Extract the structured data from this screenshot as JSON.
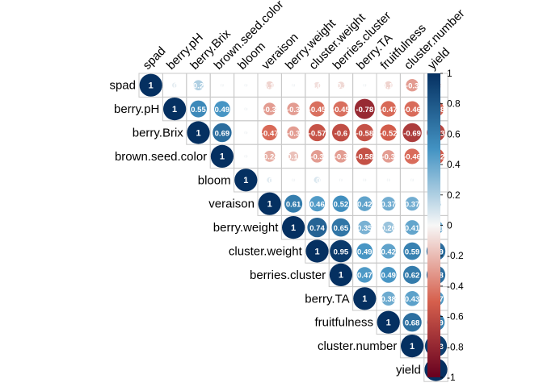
{
  "chart_data": {
    "type": "heatmap",
    "subtype": "correlation-circles-upper-triangle",
    "variables": [
      "spad",
      "berry.pH",
      "berry.Brix",
      "brown.seed.color",
      "bloom",
      "veraison",
      "berry.weight",
      "cluster.weight",
      "berries.cluster",
      "berry.TA",
      "fruitfulness",
      "cluster.number",
      "yield"
    ],
    "matrix": [
      [
        1,
        0.05,
        0.2,
        0.02,
        0.02,
        -0.12,
        0.02,
        -0.08,
        -0.1,
        0.02,
        -0.12,
        -0.3,
        -0.2
      ],
      [
        null,
        1,
        0.55,
        0.49,
        0.02,
        -0.3,
        -0.3,
        -0.45,
        -0.45,
        -0.78,
        -0.47,
        -0.46,
        -0.48
      ],
      [
        null,
        null,
        1,
        0.69,
        0.02,
        -0.47,
        -0.3,
        -0.57,
        -0.6,
        -0.58,
        -0.52,
        -0.69,
        -0.63
      ],
      [
        null,
        null,
        null,
        1,
        0.02,
        -0.24,
        -0.18,
        -0.3,
        -0.3,
        -0.58,
        -0.3,
        -0.46,
        -0.52
      ],
      [
        null,
        null,
        null,
        null,
        1,
        0.06,
        0.02,
        0.08,
        0.02,
        0.02,
        0.02,
        0.02,
        0.02
      ],
      [
        null,
        null,
        null,
        null,
        null,
        1,
        0.61,
        0.46,
        0.52,
        0.42,
        0.37,
        0.37,
        0.2
      ],
      [
        null,
        null,
        null,
        null,
        null,
        null,
        1,
        0.74,
        0.65,
        0.35,
        0.26,
        0.41,
        0.39
      ],
      [
        null,
        null,
        null,
        null,
        null,
        null,
        null,
        1,
        0.95,
        0.49,
        0.42,
        0.59,
        0.69
      ],
      [
        null,
        null,
        null,
        null,
        null,
        null,
        null,
        null,
        1,
        0.47,
        0.49,
        0.62,
        0.68
      ],
      [
        null,
        null,
        null,
        null,
        null,
        null,
        null,
        null,
        null,
        1,
        0.38,
        0.43,
        0.47
      ],
      [
        null,
        null,
        null,
        null,
        null,
        null,
        null,
        null,
        null,
        null,
        1,
        0.68,
        0.59
      ],
      [
        null,
        null,
        null,
        null,
        null,
        null,
        null,
        null,
        null,
        null,
        null,
        1,
        0.93
      ],
      [
        null,
        null,
        null,
        null,
        null,
        null,
        null,
        null,
        null,
        null,
        null,
        null,
        1
      ]
    ],
    "colorbar": {
      "range": [
        -1,
        1
      ],
      "ticks": [
        1,
        0.8,
        0.6,
        0.4,
        0.2,
        0,
        -0.2,
        -0.4,
        -0.6,
        -0.8,
        -1
      ],
      "colors": {
        "negative_end": "#67001f",
        "negative_mid": "#d6604d",
        "neutral": "#f7f7f7",
        "positive_mid": "#4393c3",
        "positive_end": "#053061"
      }
    },
    "title": "",
    "xlabel": "",
    "ylabel": "",
    "grid": true
  }
}
